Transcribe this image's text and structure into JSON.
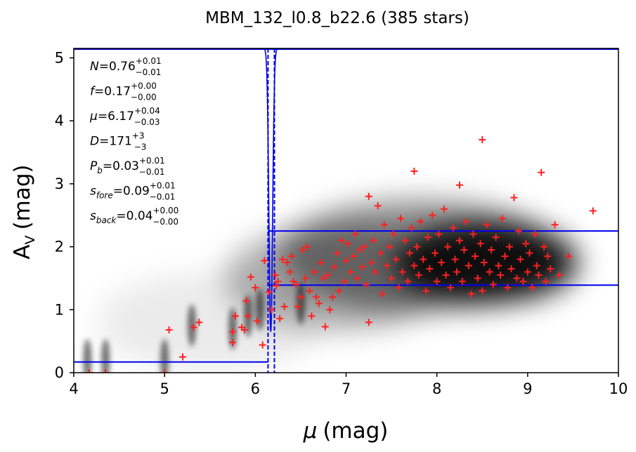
{
  "chart_data": {
    "type": "scatter",
    "title": "MBM_132_l0.8_b22.6 (385 stars)",
    "xlabel": "(mag)",
    "xlabel_symbol": "μ",
    "ylabel": "(mag)",
    "ylabel_symbol": "A",
    "ylabel_subscript": "V",
    "xlim": [
      4,
      10
    ],
    "ylim": [
      0,
      5.15
    ],
    "xticks": [
      "4",
      "5",
      "6",
      "7",
      "8",
      "9",
      "10"
    ],
    "yticks": [
      "0",
      "1",
      "2",
      "3",
      "4",
      "5"
    ],
    "grid": false,
    "background": "grayscale density of stellar extinction vs distance modulus, densest near μ≈8.6, A_V≈1.6",
    "annotations": [
      {
        "symbol": "N",
        "eq": "=",
        "value": "0.76",
        "sup": "+0.01",
        "sub": "−0.01"
      },
      {
        "symbol": "f",
        "eq": "=",
        "value": "0.17",
        "sup": "+0.00",
        "sub": "−0.00"
      },
      {
        "symbol": "μ",
        "eq": "=",
        "value": "6.17",
        "sup": "+0.04",
        "sub": "−0.03"
      },
      {
        "symbol": "D",
        "eq": "=",
        "value": "171",
        "sup": "+3",
        "sub": "−3"
      },
      {
        "symbol": "P",
        "symbol_sub": "b",
        "eq": "=",
        "value": "0.03",
        "sup": "+0.01",
        "sub": "−0.01"
      },
      {
        "symbol": "s",
        "symbol_sub": "fore",
        "eq": "=",
        "value": "0.09",
        "sup": "+0.01",
        "sub": "−0.01"
      },
      {
        "symbol": "s",
        "symbol_sub": "back",
        "eq": "=",
        "value": "0.04",
        "sup": "+0.00",
        "sub": "−0.00"
      }
    ],
    "model": {
      "distance_modulus": 6.17,
      "distance_modulus_lower": 6.14,
      "distance_modulus_upper": 6.21,
      "foreground_av": 0.17,
      "background_av_lower": 1.39,
      "background_av_upper": 2.25
    },
    "markers": {
      "stars": "+"
    },
    "colors": {
      "stars": "#ff2020",
      "model": "#0000ee",
      "density": "#000000",
      "axes": "#000000"
    },
    "stars": [
      [
        4.17,
        0.0
      ],
      [
        4.35,
        0.0
      ],
      [
        5.0,
        0.0
      ],
      [
        5.05,
        0.68
      ],
      [
        5.2,
        0.25
      ],
      [
        5.32,
        0.72
      ],
      [
        5.38,
        0.8
      ],
      [
        5.75,
        0.48
      ],
      [
        5.75,
        0.65
      ],
      [
        5.78,
        0.9
      ],
      [
        5.85,
        0.72
      ],
      [
        5.88,
        0.68
      ],
      [
        5.9,
        1.14
      ],
      [
        5.92,
        0.9
      ],
      [
        5.95,
        1.52
      ],
      [
        6.0,
        1.35
      ],
      [
        6.02,
        0.82
      ],
      [
        6.08,
        0.44
      ],
      [
        6.1,
        1.78
      ],
      [
        6.15,
        1.28
      ],
      [
        6.18,
        1.0
      ],
      [
        6.22,
        1.55
      ],
      [
        6.23,
        1.38
      ],
      [
        6.25,
        1.45
      ],
      [
        6.27,
        0.86
      ],
      [
        6.3,
        1.8
      ],
      [
        6.32,
        1.05
      ],
      [
        6.35,
        1.75
      ],
      [
        6.38,
        1.6
      ],
      [
        6.4,
        1.85
      ],
      [
        6.42,
        1.45
      ],
      [
        6.45,
        1.4
      ],
      [
        6.47,
        1.05
      ],
      [
        6.5,
        1.2
      ],
      [
        6.52,
        1.95
      ],
      [
        6.55,
        1.5
      ],
      [
        6.57,
        2.0
      ],
      [
        6.6,
        1.3
      ],
      [
        6.62,
        0.9
      ],
      [
        6.65,
        1.6
      ],
      [
        6.67,
        1.2
      ],
      [
        6.7,
        1.1
      ],
      [
        6.72,
        1.75
      ],
      [
        6.75,
        1.5
      ],
      [
        6.77,
        0.73
      ],
      [
        6.8,
        1.55
      ],
      [
        6.82,
        1.0
      ],
      [
        6.85,
        1.2
      ],
      [
        6.87,
        1.68
      ],
      [
        6.9,
        1.9
      ],
      [
        6.92,
        1.3
      ],
      [
        6.95,
        2.1
      ],
      [
        6.98,
        1.45
      ],
      [
        7.0,
        1.78
      ],
      [
        7.02,
        2.05
      ],
      [
        7.05,
        1.6
      ],
      [
        7.08,
        1.85
      ],
      [
        7.1,
        2.2
      ],
      [
        7.12,
        1.5
      ],
      [
        7.15,
        1.95
      ],
      [
        7.18,
        1.68
      ],
      [
        7.2,
        2.0
      ],
      [
        7.22,
        1.4
      ],
      [
        7.25,
        2.8
      ],
      [
        7.25,
        0.8
      ],
      [
        7.28,
        1.75
      ],
      [
        7.3,
        2.1
      ],
      [
        7.32,
        1.6
      ],
      [
        7.35,
        2.65
      ],
      [
        7.38,
        1.9
      ],
      [
        7.4,
        1.25
      ],
      [
        7.42,
        2.35
      ],
      [
        7.45,
        1.7
      ],
      [
        7.48,
        2.0
      ],
      [
        7.5,
        1.5
      ],
      [
        7.52,
        2.2
      ],
      [
        7.55,
        1.8
      ],
      [
        7.58,
        1.35
      ],
      [
        7.6,
        2.45
      ],
      [
        7.62,
        1.6
      ],
      [
        7.65,
        2.1
      ],
      [
        7.68,
        1.45
      ],
      [
        7.7,
        1.9
      ],
      [
        7.72,
        2.3
      ],
      [
        7.75,
        3.2
      ],
      [
        7.75,
        1.7
      ],
      [
        7.78,
        2.0
      ],
      [
        7.8,
        1.55
      ],
      [
        7.82,
        2.4
      ],
      [
        7.85,
        1.8
      ],
      [
        7.88,
        1.3
      ],
      [
        7.9,
        2.15
      ],
      [
        7.92,
        1.65
      ],
      [
        7.95,
        2.5
      ],
      [
        7.98,
        1.9
      ],
      [
        8.0,
        1.45
      ],
      [
        8.02,
        2.2
      ],
      [
        8.05,
        1.75
      ],
      [
        8.08,
        2.6
      ],
      [
        8.1,
        1.55
      ],
      [
        8.12,
        2.0
      ],
      [
        8.15,
        1.35
      ],
      [
        8.18,
        2.3
      ],
      [
        8.2,
        1.8
      ],
      [
        8.22,
        1.6
      ],
      [
        8.25,
        2.98
      ],
      [
        8.25,
        2.1
      ],
      [
        8.28,
        1.45
      ],
      [
        8.3,
        1.95
      ],
      [
        8.32,
        2.4
      ],
      [
        8.35,
        1.7
      ],
      [
        8.38,
        1.25
      ],
      [
        8.4,
        2.2
      ],
      [
        8.42,
        1.85
      ],
      [
        8.45,
        1.5
      ],
      [
        8.48,
        2.05
      ],
      [
        8.5,
        1.3
      ],
      [
        8.5,
        3.7
      ],
      [
        8.52,
        1.75
      ],
      [
        8.55,
        2.35
      ],
      [
        8.58,
        1.6
      ],
      [
        8.6,
        1.95
      ],
      [
        8.62,
        1.4
      ],
      [
        8.65,
        2.15
      ],
      [
        8.68,
        1.7
      ],
      [
        8.7,
        1.55
      ],
      [
        8.72,
        2.45
      ],
      [
        8.75,
        1.85
      ],
      [
        8.78,
        1.35
      ],
      [
        8.8,
        2.0
      ],
      [
        8.82,
        1.65
      ],
      [
        8.85,
        2.78
      ],
      [
        8.88,
        1.5
      ],
      [
        8.9,
        2.25
      ],
      [
        8.92,
        1.8
      ],
      [
        8.95,
        1.45
      ],
      [
        8.98,
        2.05
      ],
      [
        9.0,
        1.6
      ],
      [
        9.02,
        1.9
      ],
      [
        9.05,
        1.35
      ],
      [
        9.08,
        2.2
      ],
      [
        9.1,
        1.7
      ],
      [
        9.12,
        1.55
      ],
      [
        9.15,
        3.18
      ],
      [
        9.18,
        2.0
      ],
      [
        9.2,
        1.45
      ],
      [
        9.22,
        1.85
      ],
      [
        9.25,
        1.65
      ],
      [
        9.3,
        2.35
      ],
      [
        9.35,
        1.55
      ],
      [
        9.45,
        1.85
      ],
      [
        9.72,
        2.57
      ]
    ]
  }
}
